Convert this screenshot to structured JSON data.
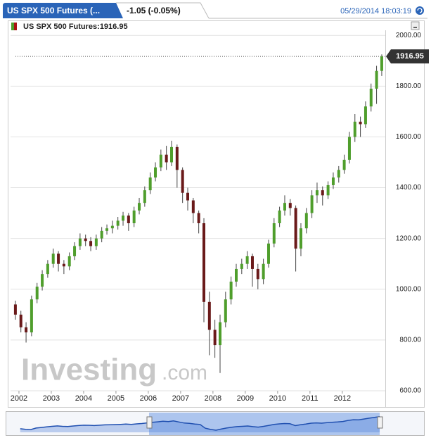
{
  "header": {
    "tab_title": "US SPX 500 Futures (...",
    "change": "-1.05 (-0.05%)",
    "timestamp": "05/29/2014 18:03:19"
  },
  "chart_data": {
    "type": "candlestick",
    "legend_label": "US SPX 500 Futures:1916.95",
    "last_price": 1916.95,
    "watermark": [
      "Investing",
      ".com"
    ],
    "up_color": "#4f9e2c",
    "down_color": "#6a1a1a",
    "x": [
      2001.89,
      2002.06,
      2002.22,
      2002.39,
      2002.56,
      2002.72,
      2002.89,
      2003.06,
      2003.22,
      2003.39,
      2003.56,
      2003.72,
      2003.89,
      2004.06,
      2004.22,
      2004.39,
      2004.56,
      2004.72,
      2004.89,
      2005.06,
      2005.22,
      2005.39,
      2005.56,
      2005.72,
      2005.89,
      2006.06,
      2006.22,
      2006.39,
      2006.56,
      2006.72,
      2006.89,
      2007.06,
      2007.22,
      2007.39,
      2007.56,
      2007.72,
      2007.89,
      2008.06,
      2008.22,
      2008.39,
      2008.56,
      2008.72,
      2008.89,
      2009.06,
      2009.22,
      2009.39,
      2009.56,
      2009.72,
      2009.89,
      2010.06,
      2010.22,
      2010.39,
      2010.56,
      2010.72,
      2010.89,
      2011.06,
      2011.22,
      2011.39,
      2011.56,
      2011.72,
      2011.89,
      2012.06,
      2012.22,
      2012.39,
      2012.56,
      2012.72,
      2012.89,
      2013.06,
      2013.22
    ],
    "open": [
      940,
      900,
      850,
      830,
      960,
      1010,
      1060,
      1100,
      1140,
      1100,
      1090,
      1130,
      1170,
      1200,
      1190,
      1170,
      1200,
      1230,
      1240,
      1250,
      1270,
      1290,
      1260,
      1310,
      1340,
      1390,
      1440,
      1480,
      1530,
      1500,
      1560,
      1470,
      1380,
      1350,
      1300,
      1260,
      950,
      840,
      780,
      870,
      960,
      1030,
      1080,
      1100,
      1130,
      1080,
      1040,
      1100,
      1180,
      1260,
      1310,
      1340,
      1320,
      1160,
      1240,
      1300,
      1370,
      1390,
      1370,
      1410,
      1440,
      1470,
      1510,
      1600,
      1660,
      1650,
      1720,
      1790,
      1860
    ],
    "high": [
      955,
      915,
      870,
      975,
      1025,
      1075,
      1115,
      1160,
      1150,
      1115,
      1145,
      1185,
      1220,
      1215,
      1205,
      1215,
      1245,
      1255,
      1270,
      1285,
      1305,
      1300,
      1325,
      1360,
      1405,
      1460,
      1500,
      1550,
      1565,
      1585,
      1570,
      1480,
      1400,
      1360,
      1310,
      1280,
      990,
      880,
      900,
      990,
      1050,
      1100,
      1120,
      1150,
      1140,
      1100,
      1120,
      1195,
      1280,
      1325,
      1370,
      1355,
      1330,
      1260,
      1320,
      1390,
      1420,
      1405,
      1425,
      1460,
      1485,
      1530,
      1620,
      1690,
      1680,
      1740,
      1810,
      1880,
      1925
    ],
    "low": [
      880,
      830,
      790,
      815,
      945,
      995,
      1045,
      1085,
      1070,
      1060,
      1075,
      1115,
      1155,
      1170,
      1150,
      1155,
      1185,
      1215,
      1220,
      1235,
      1250,
      1230,
      1245,
      1295,
      1325,
      1375,
      1425,
      1465,
      1470,
      1485,
      1400,
      1340,
      1310,
      1260,
      1220,
      870,
      740,
      730,
      670,
      850,
      940,
      1010,
      1060,
      1080,
      1010,
      1000,
      1020,
      1085,
      1165,
      1245,
      1290,
      1290,
      1070,
      1130,
      1220,
      1280,
      1340,
      1330,
      1355,
      1395,
      1420,
      1455,
      1495,
      1580,
      1600,
      1635,
      1700,
      1730,
      1840
    ],
    "close": [
      900,
      850,
      830,
      960,
      1010,
      1060,
      1100,
      1140,
      1100,
      1090,
      1130,
      1170,
      1200,
      1190,
      1170,
      1200,
      1230,
      1240,
      1250,
      1270,
      1290,
      1260,
      1310,
      1340,
      1390,
      1440,
      1480,
      1530,
      1500,
      1560,
      1470,
      1380,
      1350,
      1300,
      1260,
      950,
      840,
      780,
      870,
      960,
      1030,
      1080,
      1100,
      1130,
      1080,
      1040,
      1100,
      1180,
      1260,
      1310,
      1340,
      1320,
      1160,
      1240,
      1300,
      1370,
      1390,
      1370,
      1410,
      1440,
      1470,
      1510,
      1600,
      1660,
      1650,
      1720,
      1790,
      1860,
      1916.95
    ],
    "xlim": [
      2001.74,
      2013.33
    ],
    "xticks": [
      2002,
      2003,
      2004,
      2005,
      2006,
      2007,
      2008,
      2009,
      2010,
      2011,
      2012
    ],
    "ylim": [
      600,
      2020
    ],
    "yticks": [
      {
        "value": 600,
        "label": "600.00"
      },
      {
        "value": 800,
        "label": "800.00"
      },
      {
        "value": 1000,
        "label": "1000.00"
      },
      {
        "value": 1200,
        "label": "1200.00"
      },
      {
        "value": 1400,
        "label": "1400.00"
      },
      {
        "value": 1600,
        "label": "1600.00"
      },
      {
        "value": 1800,
        "label": "1800.00"
      },
      {
        "value": 2000,
        "label": "2000.00"
      }
    ],
    "grid": true
  }
}
